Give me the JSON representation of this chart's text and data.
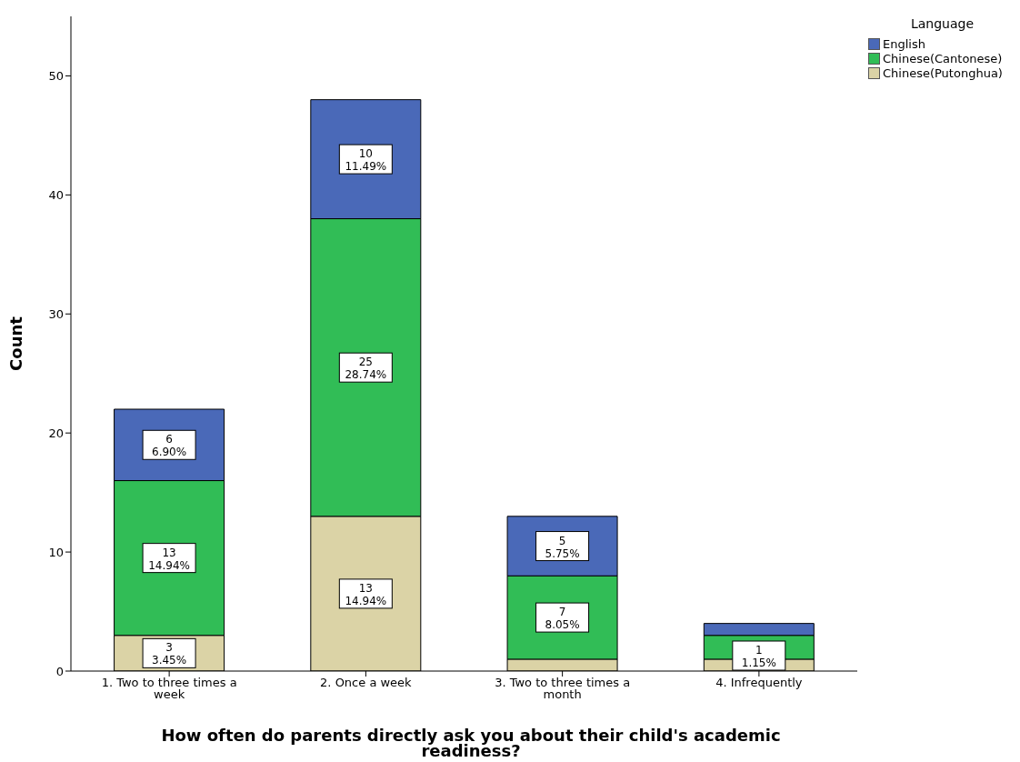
{
  "chart_data": {
    "type": "bar",
    "stacked": true,
    "xlabel": "How often do parents directly ask you about their child's academic readiness?",
    "ylabel": "Count",
    "legend_title": "Language",
    "legend": "top right",
    "grid": false,
    "categories": [
      "1. Two to three times a week",
      "2. Once a week",
      "3. Two to three times a month",
      "4. Infrequently"
    ],
    "ylim": [
      0,
      55
    ],
    "yticks": [
      0,
      10,
      20,
      30,
      40,
      50
    ],
    "series": [
      {
        "name": "Chinese(Putonghua)",
        "color": "#dbd3a6",
        "values": [
          3,
          13,
          1,
          1
        ],
        "value_labels": [
          "3\n3.45%",
          "13\n14.94%",
          null,
          "1\n1.15%"
        ]
      },
      {
        "name": "Chinese(Cantonese)",
        "color": "#31bd56",
        "values": [
          13,
          25,
          7,
          2
        ],
        "value_labels": [
          "13\n14.94%",
          "25\n28.74%",
          "7\n8.05%",
          null
        ]
      },
      {
        "name": "English",
        "color": "#4a69b8",
        "values": [
          6,
          10,
          5,
          1
        ],
        "value_labels": [
          "6\n6.90%",
          "10\n11.49%",
          "5\n5.75%",
          null
        ]
      }
    ]
  }
}
